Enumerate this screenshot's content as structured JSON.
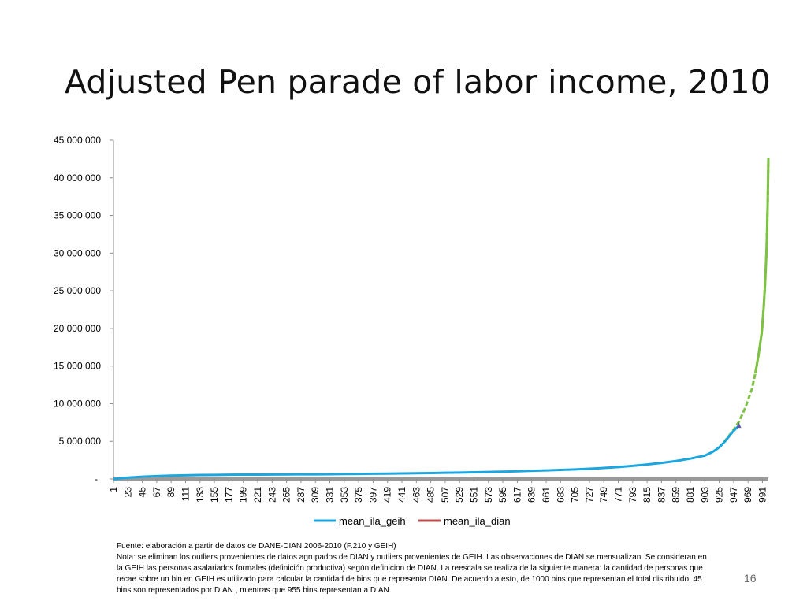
{
  "slide": {
    "title": "Adjusted Pen parade of labor income, 2010",
    "page_number": "16",
    "footnote_lines": [
      "Fuente: elaboración a partir de datos de DANE-DIAN 2006-2010 (F.210  y GEIH)",
      "Nota: se eliminan los outliers provenientes de datos agrupados de DIAN y outliers provenientes de GEIH. Las observaciones de DIAN se mensualizan. Se consideran en",
      "la GEIH las personas asalariados formales  (definición productiva) según definicion de DIAN. La reescala se realiza de la siguiente manera: la cantidad de personas que",
      "recae sobre un bin en GEIH es utilizado para calcular la cantidad de bins que representa  DIAN. De acuerdo a  esto, de 1000 bins que representan el total distribuido, 45",
      "bins son representados por DIAN , mientras que 955 bins representan a DIAN."
    ]
  },
  "colors": {
    "geih": "#1ba6e0",
    "dian": "#c0504d",
    "dian_tail": "#7dc242",
    "axis": "#8c8c8c",
    "zero_band": "#9a9a9a",
    "marker": "#5b5ea6"
  },
  "chart_data": {
    "type": "line",
    "title": "",
    "xlabel": "",
    "ylabel": "",
    "ylim": [
      0,
      45000000
    ],
    "xlim": [
      1,
      1000
    ],
    "y_tick_values": [
      0,
      5000000,
      10000000,
      15000000,
      20000000,
      25000000,
      30000000,
      35000000,
      40000000,
      45000000
    ],
    "y_tick_labels": [
      "-",
      "5 000 000",
      "10 000 000",
      "15 000 000",
      "20 000 000",
      "25 000 000",
      "30 000 000",
      "35 000 000",
      "40 000 000",
      "45 000 000"
    ],
    "x_tick_labels": [
      "1",
      "23",
      "45",
      "67",
      "89",
      "111",
      "133",
      "155",
      "177",
      "199",
      "221",
      "243",
      "265",
      "287",
      "309",
      "331",
      "353",
      "375",
      "397",
      "419",
      "441",
      "463",
      "485",
      "507",
      "529",
      "551",
      "573",
      "595",
      "617",
      "639",
      "661",
      "683",
      "705",
      "727",
      "749",
      "771",
      "793",
      "815",
      "837",
      "859",
      "881",
      "903",
      "925",
      "947",
      "969",
      "991"
    ],
    "legend": {
      "position": "bottom",
      "entries": [
        "mean_ila_geih",
        "mean_ila_dian"
      ]
    },
    "grid": false,
    "series": [
      {
        "name": "mean_ila_geih",
        "x": [
          1,
          23,
          45,
          67,
          89,
          111,
          133,
          155,
          177,
          199,
          221,
          243,
          265,
          287,
          309,
          331,
          353,
          375,
          397,
          419,
          441,
          463,
          485,
          507,
          529,
          551,
          573,
          595,
          617,
          639,
          661,
          683,
          705,
          727,
          749,
          771,
          793,
          815,
          837,
          859,
          881,
          903,
          915,
          925,
          935,
          945,
          955
        ],
        "y": [
          0,
          180000,
          300000,
          380000,
          440000,
          490000,
          520000,
          540000,
          560000,
          570000,
          580000,
          590000,
          600000,
          610000,
          620000,
          630000,
          650000,
          670000,
          690000,
          710000,
          730000,
          760000,
          790000,
          820000,
          850000,
          890000,
          930000,
          970000,
          1020000,
          1080000,
          1140000,
          1200000,
          1270000,
          1360000,
          1460000,
          1580000,
          1740000,
          1920000,
          2130000,
          2380000,
          2700000,
          3100000,
          3600000,
          4200000,
          5100000,
          6200000,
          7100000
        ]
      },
      {
        "name": "mean_ila_dian",
        "x": [
          925,
          935,
          945,
          955,
          965,
          975,
          980,
          985,
          990,
          993,
          995,
          997,
          998,
          999,
          1000
        ],
        "y": [
          4200000,
          5200000,
          6300000,
          7600000,
          9500000,
          12000000,
          14000000,
          16500000,
          19500000,
          23000000,
          26000000,
          30000000,
          33000000,
          37000000,
          42700000
        ]
      }
    ]
  }
}
